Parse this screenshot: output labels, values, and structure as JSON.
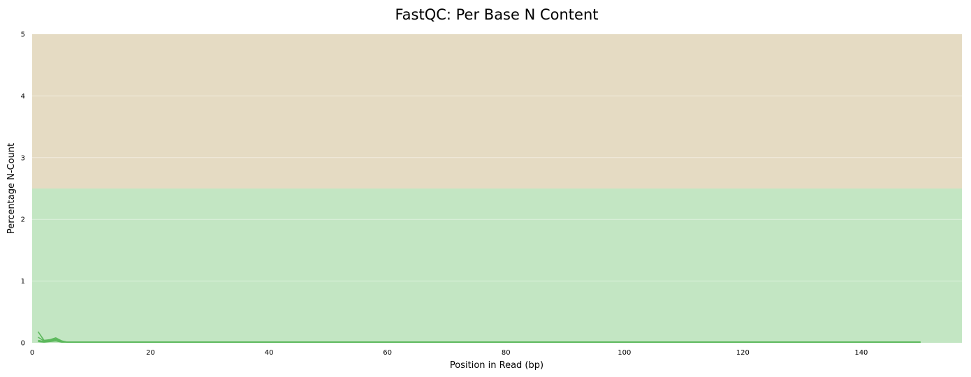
{
  "chart_data": {
    "type": "line",
    "title": "FastQC: Per Base N Content",
    "xlabel": "Position in Read (bp)",
    "ylabel": "Percentage N-Count",
    "xlim": [
      0,
      157
    ],
    "ylim": [
      0,
      5
    ],
    "xticks": [
      0,
      20,
      40,
      60,
      80,
      100,
      120,
      140
    ],
    "yticks": [
      0,
      1,
      2,
      3,
      4,
      5
    ],
    "grid": true,
    "bands": [
      {
        "from": 0,
        "to": 2.5,
        "color": "#c3e6c3"
      },
      {
        "from": 2.5,
        "to": 5,
        "color": "#e5dbc3"
      }
    ],
    "series": [
      {
        "color": "#5cb85c",
        "x": [
          1,
          2,
          3,
          4,
          5,
          6,
          7,
          10,
          20,
          40,
          60,
          80,
          100,
          120,
          140,
          150
        ],
        "y": [
          0.18,
          0.04,
          0.05,
          0.08,
          0.03,
          0.01,
          0.01,
          0.01,
          0.01,
          0.01,
          0.01,
          0.01,
          0.01,
          0.01,
          0.01,
          0.01
        ]
      },
      {
        "color": "#5cb85c",
        "x": [
          1,
          2,
          3,
          4,
          5,
          6,
          7,
          10,
          20,
          40,
          60,
          80,
          100,
          120,
          140,
          150
        ],
        "y": [
          0.09,
          0.03,
          0.04,
          0.06,
          0.02,
          0.01,
          0.01,
          0.01,
          0.01,
          0.01,
          0.01,
          0.01,
          0.01,
          0.01,
          0.01,
          0.01
        ]
      },
      {
        "color": "#5cb85c",
        "x": [
          1,
          2,
          3,
          4,
          5,
          6,
          7,
          10,
          20,
          40,
          60,
          80,
          100,
          120,
          140,
          150
        ],
        "y": [
          0.04,
          0.02,
          0.03,
          0.05,
          0.02,
          0.01,
          0.01,
          0.01,
          0.01,
          0.01,
          0.01,
          0.01,
          0.01,
          0.01,
          0.01,
          0.01
        ]
      },
      {
        "color": "#5cb85c",
        "x": [
          1,
          2,
          3,
          4,
          5,
          6,
          7,
          10,
          20,
          40,
          60,
          80,
          100,
          120,
          140,
          150
        ],
        "y": [
          0.02,
          0.01,
          0.02,
          0.03,
          0.01,
          0.01,
          0.01,
          0.01,
          0.01,
          0.01,
          0.01,
          0.01,
          0.01,
          0.01,
          0.01,
          0.01
        ]
      }
    ]
  }
}
